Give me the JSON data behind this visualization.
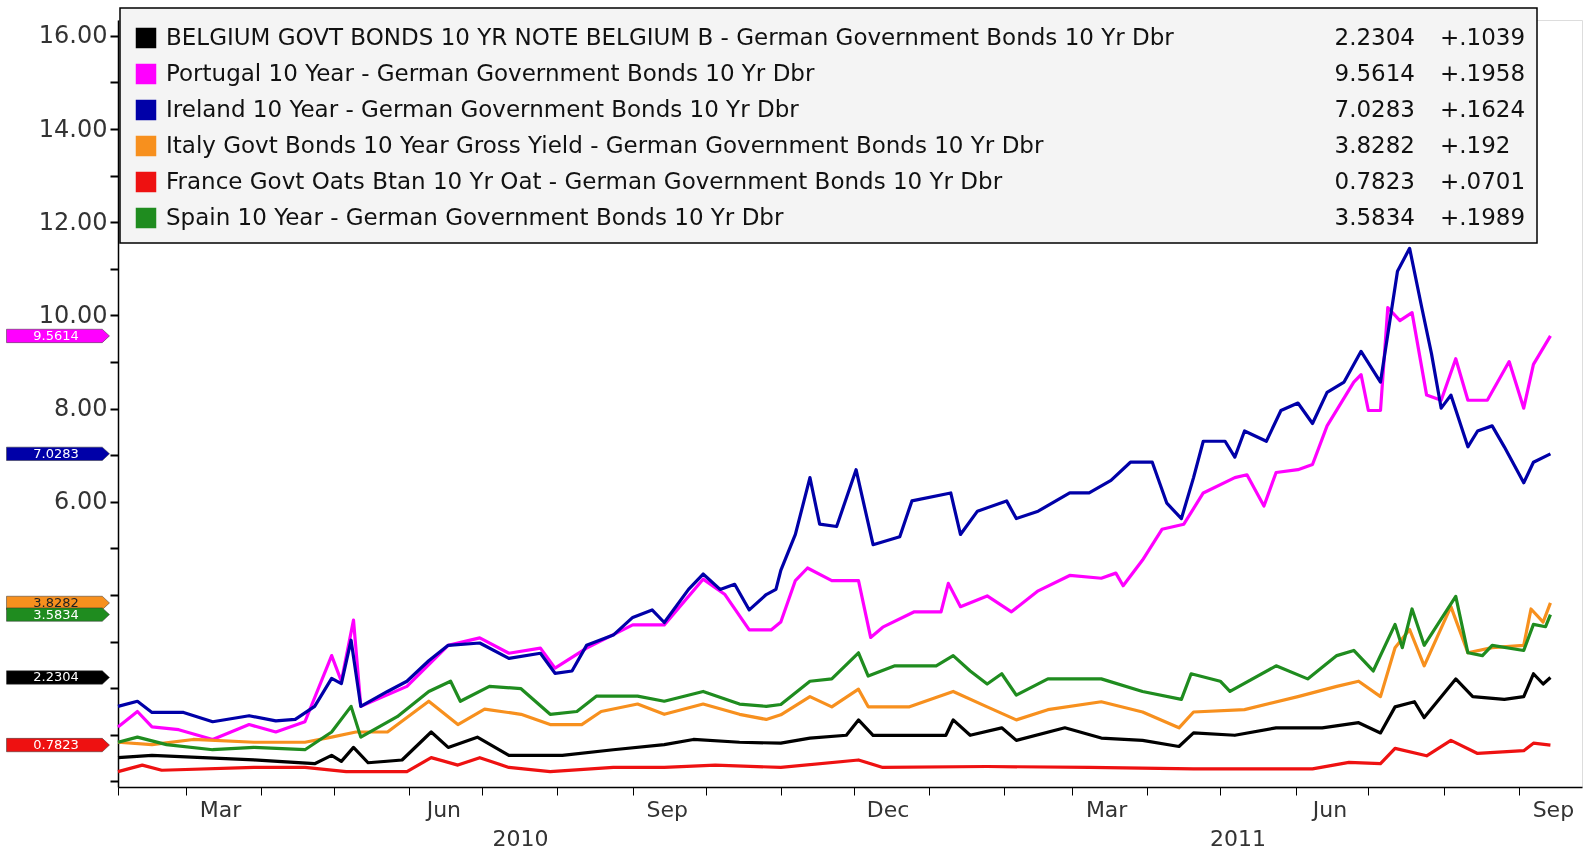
{
  "chart_data": {
    "type": "line",
    "legend": "top",
    "grid": false,
    "xlim": [
      "2010-02-01",
      "2011-09-27"
    ],
    "xticks": [
      {
        "value": "2010-02-01",
        "label": null
      },
      {
        "value": "2010-03-01",
        "label": null
      },
      {
        "value": "2010-03-15",
        "label": "Mar"
      },
      {
        "value": "2010-04-01",
        "label": null
      },
      {
        "value": "2010-05-01",
        "label": null
      },
      {
        "value": "2010-06-01",
        "label": null
      },
      {
        "value": "2010-06-15",
        "label": "Jun"
      },
      {
        "value": "2010-07-01",
        "label": null
      },
      {
        "value": "2010-08-01",
        "label": null
      },
      {
        "value": "2010-09-01",
        "label": null
      },
      {
        "value": "2010-09-15",
        "label": "Sep"
      },
      {
        "value": "2010-10-01",
        "label": null
      },
      {
        "value": "2010-11-01",
        "label": null
      },
      {
        "value": "2010-12-01",
        "label": null
      },
      {
        "value": "2010-12-15",
        "label": "Dec"
      },
      {
        "value": "2011-01-01",
        "label": null
      },
      {
        "value": "2011-02-01",
        "label": null
      },
      {
        "value": "2011-03-01",
        "label": null
      },
      {
        "value": "2011-03-15",
        "label": "Mar"
      },
      {
        "value": "2011-04-01",
        "label": null
      },
      {
        "value": "2011-05-01",
        "label": null
      },
      {
        "value": "2011-06-01",
        "label": null
      },
      {
        "value": "2011-06-15",
        "label": "Jun"
      },
      {
        "value": "2011-07-01",
        "label": null
      },
      {
        "value": "2011-08-01",
        "label": null
      },
      {
        "value": "2011-09-01",
        "label": null
      },
      {
        "value": "2011-09-15",
        "label": "Sep"
      }
    ],
    "ylim": [
      -0.12,
      16.34
    ],
    "yticks": [
      {
        "value": 0,
        "label": null
      },
      {
        "value": 1,
        "label": null
      },
      {
        "value": 2,
        "label": null
      },
      {
        "value": 3,
        "label": null
      },
      {
        "value": 4,
        "label": null
      },
      {
        "value": 5,
        "label": null
      },
      {
        "value": 6,
        "label": "6.00"
      },
      {
        "value": 7,
        "label": null
      },
      {
        "value": 8,
        "label": "8.00"
      },
      {
        "value": 9,
        "label": null
      },
      {
        "value": 10,
        "label": "10.00"
      },
      {
        "value": 11,
        "label": null
      },
      {
        "value": 12,
        "label": "12.00"
      },
      {
        "value": 13,
        "label": null
      },
      {
        "value": 14,
        "label": "14.00"
      },
      {
        "value": 15,
        "label": null
      },
      {
        "value": 16,
        "label": "16.00"
      }
    ],
    "series": [
      {
        "name": "BELGIUM GOVT BONDS 10 YR NOTE BELGIUM B - German Government Bonds 10 Yr Dbr",
        "color": "#000000",
        "x": [
          "2010-02-01",
          "2010-02-15",
          "2010-03-08",
          "2010-03-29",
          "2010-04-23",
          "2010-04-30",
          "2010-05-04",
          "2010-05-09",
          "2010-05-15",
          "2010-05-29",
          "2010-06-10",
          "2010-06-17",
          "2010-06-29",
          "2010-07-12",
          "2010-08-03",
          "2010-08-24",
          "2010-09-14",
          "2010-09-26",
          "2010-10-15",
          "2010-11-01",
          "2010-11-13",
          "2010-11-28",
          "2010-12-03",
          "2010-12-09",
          "2010-12-24",
          "2011-01-08",
          "2011-01-11",
          "2011-01-18",
          "2011-01-31",
          "2011-02-06",
          "2011-02-26",
          "2011-03-13",
          "2011-03-30",
          "2011-04-14",
          "2011-04-20",
          "2011-05-07",
          "2011-05-24",
          "2011-06-12",
          "2011-06-27",
          "2011-07-06",
          "2011-07-12",
          "2011-07-20",
          "2011-07-24",
          "2011-08-06",
          "2011-08-13",
          "2011-08-26",
          "2011-09-03",
          "2011-09-07",
          "2011-09-11",
          "2011-09-14"
        ],
        "values": [
          0.51,
          0.56,
          0.51,
          0.46,
          0.38,
          0.56,
          0.43,
          0.73,
          0.4,
          0.46,
          1.06,
          0.73,
          0.95,
          0.56,
          0.56,
          0.68,
          0.79,
          0.9,
          0.84,
          0.82,
          0.93,
          0.99,
          1.32,
          0.99,
          0.99,
          0.99,
          1.32,
          0.99,
          1.15,
          0.88,
          1.15,
          0.93,
          0.88,
          0.75,
          1.04,
          0.99,
          1.15,
          1.15,
          1.26,
          1.04,
          1.6,
          1.71,
          1.37,
          2.2,
          1.82,
          1.76,
          1.82,
          2.31,
          2.09,
          2.23
        ]
      },
      {
        "name": "Portugal 10 Year - German Government Bonds 10 Yr Dbr",
        "color": "#ff00ff",
        "x": [
          "2010-02-01",
          "2010-02-09",
          "2010-02-15",
          "2010-02-26",
          "2010-03-12",
          "2010-03-27",
          "2010-04-07",
          "2010-04-19",
          "2010-04-30",
          "2010-05-04",
          "2010-05-09",
          "2010-05-12",
          "2010-05-31",
          "2010-06-17",
          "2010-06-30",
          "2010-07-12",
          "2010-07-25",
          "2010-07-31",
          "2010-08-13",
          "2010-09-01",
          "2010-09-14",
          "2010-09-30",
          "2010-10-09",
          "2010-10-19",
          "2010-10-28",
          "2010-11-01",
          "2010-11-07",
          "2010-11-12",
          "2010-11-22",
          "2010-12-03",
          "2010-12-08",
          "2010-12-13",
          "2010-12-26",
          "2011-01-06",
          "2011-01-09",
          "2011-01-14",
          "2011-01-25",
          "2011-02-04",
          "2011-02-15",
          "2011-02-28",
          "2011-03-13",
          "2011-03-19",
          "2011-03-22",
          "2011-03-30",
          "2011-04-07",
          "2011-04-16",
          "2011-04-24",
          "2011-05-07",
          "2011-05-12",
          "2011-05-19",
          "2011-05-24",
          "2011-06-02",
          "2011-06-08",
          "2011-06-14",
          "2011-06-25",
          "2011-06-28",
          "2011-07-01",
          "2011-07-06",
          "2011-07-09",
          "2011-07-14",
          "2011-07-19",
          "2011-07-25",
          "2011-07-31",
          "2011-08-06",
          "2011-08-11",
          "2011-08-19",
          "2011-08-28",
          "2011-09-03",
          "2011-09-07",
          "2011-09-14"
        ],
        "values": [
          1.17,
          1.5,
          1.17,
          1.11,
          0.9,
          1.22,
          1.06,
          1.28,
          2.7,
          2.15,
          3.46,
          1.61,
          2.04,
          2.92,
          3.08,
          2.75,
          2.86,
          2.43,
          2.86,
          3.36,
          3.36,
          4.34,
          4.01,
          3.25,
          3.25,
          3.42,
          4.31,
          4.58,
          4.31,
          4.31,
          3.09,
          3.31,
          3.64,
          3.64,
          4.25,
          3.75,
          3.98,
          3.64,
          4.09,
          4.42,
          4.36,
          4.47,
          4.2,
          4.75,
          5.41,
          5.52,
          6.19,
          6.52,
          6.58,
          5.91,
          6.63,
          6.69,
          6.8,
          7.63,
          8.57,
          8.73,
          7.96,
          7.96,
          10.17,
          9.89,
          10.06,
          8.29,
          8.18,
          9.07,
          8.18,
          8.18,
          9.01,
          8.01,
          8.95,
          9.56
        ]
      },
      {
        "name": "Ireland 10 Year - German Government Bonds 10 Yr Dbr",
        "color": "#0000a8",
        "x": [
          "2010-02-01",
          "2010-02-09",
          "2010-02-15",
          "2010-02-28",
          "2010-03-12",
          "2010-03-27",
          "2010-04-07",
          "2010-04-15",
          "2010-04-23",
          "2010-04-30",
          "2010-05-04",
          "2010-05-08",
          "2010-05-12",
          "2010-05-23",
          "2010-05-31",
          "2010-06-09",
          "2010-06-17",
          "2010-06-30",
          "2010-07-12",
          "2010-07-25",
          "2010-07-31",
          "2010-08-07",
          "2010-08-13",
          "2010-08-24",
          "2010-09-01",
          "2010-09-09",
          "2010-09-14",
          "2010-09-24",
          "2010-09-30",
          "2010-10-07",
          "2010-10-13",
          "2010-10-19",
          "2010-10-26",
          "2010-10-30",
          "2010-11-01",
          "2010-11-07",
          "2010-11-13",
          "2010-11-17",
          "2010-11-24",
          "2010-12-02",
          "2010-12-09",
          "2010-12-20",
          "2010-12-25",
          "2011-01-10",
          "2011-01-14",
          "2011-01-21",
          "2011-02-02",
          "2011-02-06",
          "2011-02-15",
          "2011-02-28",
          "2011-03-08",
          "2011-03-17",
          "2011-03-25",
          "2011-04-03",
          "2011-04-09",
          "2011-04-15",
          "2011-04-20",
          "2011-04-24",
          "2011-05-03",
          "2011-05-07",
          "2011-05-11",
          "2011-05-20",
          "2011-05-26",
          "2011-06-02",
          "2011-06-08",
          "2011-06-14",
          "2011-06-21",
          "2011-06-28",
          "2011-07-06",
          "2011-07-13",
          "2011-07-18",
          "2011-07-23",
          "2011-07-27",
          "2011-07-31",
          "2011-08-04",
          "2011-08-11",
          "2011-08-15",
          "2011-08-21",
          "2011-08-26",
          "2011-09-03",
          "2011-09-07",
          "2011-09-14"
        ],
        "values": [
          1.61,
          1.72,
          1.48,
          1.48,
          1.28,
          1.41,
          1.3,
          1.33,
          1.61,
          2.21,
          2.1,
          3.03,
          1.61,
          1.93,
          2.15,
          2.59,
          2.92,
          2.97,
          2.64,
          2.75,
          2.32,
          2.37,
          2.92,
          3.14,
          3.52,
          3.68,
          3.41,
          4.12,
          4.45,
          4.12,
          4.23,
          3.68,
          4.01,
          4.12,
          4.53,
          5.3,
          6.52,
          5.52,
          5.47,
          6.69,
          5.08,
          5.25,
          6.02,
          6.19,
          5.3,
          5.8,
          6.02,
          5.64,
          5.8,
          6.19,
          6.19,
          6.46,
          6.85,
          6.85,
          5.97,
          5.64,
          6.52,
          7.3,
          7.3,
          6.96,
          7.52,
          7.3,
          7.96,
          8.12,
          7.68,
          8.35,
          8.57,
          9.23,
          8.57,
          10.95,
          11.44,
          10.17,
          9.18,
          8.01,
          8.29,
          7.18,
          7.52,
          7.63,
          7.18,
          6.41,
          6.85,
          7.03
        ]
      },
      {
        "name": "Italy Govt Bonds 10 Year Gross Yield - German Government Bonds 10 Yr Dbr",
        "color": "#f7901e",
        "x": [
          "2010-02-01",
          "2010-02-15",
          "2010-03-04",
          "2010-03-29",
          "2010-04-19",
          "2010-04-30",
          "2010-05-10",
          "2010-05-23",
          "2010-06-09",
          "2010-06-21",
          "2010-07-02",
          "2010-07-17",
          "2010-07-29",
          "2010-08-11",
          "2010-08-19",
          "2010-09-03",
          "2010-09-14",
          "2010-09-30",
          "2010-10-15",
          "2010-10-26",
          "2010-11-01",
          "2010-11-13",
          "2010-11-22",
          "2010-12-03",
          "2010-12-07",
          "2010-12-24",
          "2011-01-11",
          "2011-01-25",
          "2011-02-06",
          "2011-02-19",
          "2011-03-13",
          "2011-03-30",
          "2011-04-14",
          "2011-04-20",
          "2011-05-11",
          "2011-06-02",
          "2011-06-18",
          "2011-06-27",
          "2011-07-06",
          "2011-07-12",
          "2011-07-18",
          "2011-07-24",
          "2011-08-04",
          "2011-08-11",
          "2011-08-21",
          "2011-09-03",
          "2011-09-06",
          "2011-09-11",
          "2011-09-14"
        ],
        "values": [
          0.84,
          0.79,
          0.9,
          0.84,
          0.84,
          0.95,
          1.06,
          1.06,
          1.72,
          1.22,
          1.55,
          1.44,
          1.22,
          1.22,
          1.5,
          1.66,
          1.44,
          1.66,
          1.44,
          1.33,
          1.43,
          1.82,
          1.6,
          1.98,
          1.6,
          1.6,
          1.93,
          1.6,
          1.32,
          1.54,
          1.71,
          1.49,
          1.15,
          1.49,
          1.54,
          1.82,
          2.04,
          2.15,
          1.82,
          2.87,
          3.26,
          2.48,
          3.75,
          2.76,
          2.87,
          2.92,
          3.7,
          3.42,
          3.83
        ]
      },
      {
        "name": "France Govt Oats Btan 10 Yr Oat - German Government Bonds 10 Yr Dbr",
        "color": "#ee1111",
        "x": [
          "2010-02-01",
          "2010-02-11",
          "2010-02-19",
          "2010-03-29",
          "2010-04-19",
          "2010-05-06",
          "2010-05-31",
          "2010-06-10",
          "2010-06-21",
          "2010-06-30",
          "2010-07-12",
          "2010-07-29",
          "2010-08-24",
          "2010-09-14",
          "2010-10-05",
          "2010-11-01",
          "2010-12-03",
          "2010-12-13",
          "2011-01-25",
          "2011-03-08",
          "2011-04-20",
          "2011-06-08",
          "2011-06-23",
          "2011-07-06",
          "2011-07-12",
          "2011-07-25",
          "2011-08-04",
          "2011-08-15",
          "2011-09-03",
          "2011-09-07",
          "2011-09-14"
        ],
        "values": [
          0.21,
          0.35,
          0.24,
          0.3,
          0.3,
          0.21,
          0.21,
          0.51,
          0.35,
          0.51,
          0.3,
          0.21,
          0.3,
          0.3,
          0.35,
          0.3,
          0.46,
          0.3,
          0.32,
          0.3,
          0.27,
          0.27,
          0.41,
          0.38,
          0.71,
          0.55,
          0.88,
          0.6,
          0.66,
          0.82,
          0.78
        ]
      },
      {
        "name": "Spain 10 Year - German Government Bonds 10 Yr Dbr",
        "color": "#1f8c1f",
        "x": [
          "2010-02-01",
          "2010-02-09",
          "2010-02-21",
          "2010-03-12",
          "2010-03-29",
          "2010-04-19",
          "2010-04-30",
          "2010-05-08",
          "2010-05-12",
          "2010-05-27",
          "2010-06-09",
          "2010-06-18",
          "2010-06-22",
          "2010-07-04",
          "2010-07-17",
          "2010-07-29",
          "2010-08-09",
          "2010-08-17",
          "2010-09-03",
          "2010-09-14",
          "2010-09-30",
          "2010-10-15",
          "2010-10-26",
          "2010-11-01",
          "2010-11-13",
          "2010-11-22",
          "2010-12-03",
          "2010-12-07",
          "2010-12-18",
          "2011-01-04",
          "2011-01-11",
          "2011-01-18",
          "2011-01-25",
          "2011-01-31",
          "2011-02-06",
          "2011-02-19",
          "2011-03-13",
          "2011-03-30",
          "2011-04-15",
          "2011-04-19",
          "2011-05-01",
          "2011-05-05",
          "2011-05-24",
          "2011-06-06",
          "2011-06-18",
          "2011-06-25",
          "2011-07-03",
          "2011-07-12",
          "2011-07-15",
          "2011-07-19",
          "2011-07-24",
          "2011-08-06",
          "2011-08-11",
          "2011-08-17",
          "2011-08-21",
          "2011-09-03",
          "2011-09-07",
          "2011-09-12",
          "2011-09-14"
        ],
        "values": [
          0.84,
          0.95,
          0.79,
          0.68,
          0.73,
          0.68,
          1.06,
          1.61,
          0.95,
          1.39,
          1.93,
          2.15,
          1.72,
          2.04,
          1.99,
          1.44,
          1.5,
          1.83,
          1.83,
          1.72,
          1.93,
          1.66,
          1.61,
          1.65,
          2.15,
          2.2,
          2.76,
          2.26,
          2.48,
          2.48,
          2.7,
          2.37,
          2.09,
          2.31,
          1.85,
          2.2,
          2.2,
          1.93,
          1.76,
          2.31,
          2.15,
          1.93,
          2.48,
          2.2,
          2.7,
          2.81,
          2.37,
          3.37,
          2.87,
          3.7,
          2.92,
          3.97,
          2.76,
          2.7,
          2.92,
          2.81,
          3.37,
          3.32,
          3.58
        ]
      }
    ],
    "annotations": [
      "2.2304",
      "9.5614",
      "7.0283",
      "3.8282",
      "0.7823",
      "3.5834",
      "2010",
      "2011",
      "2.2304",
      "+.1039",
      "9.5614",
      "+.1958",
      "7.0283",
      "+.1624",
      "3.8282",
      "+.192",
      "0.7823",
      "+.0701",
      "3.5834",
      "+.1989"
    ]
  }
}
